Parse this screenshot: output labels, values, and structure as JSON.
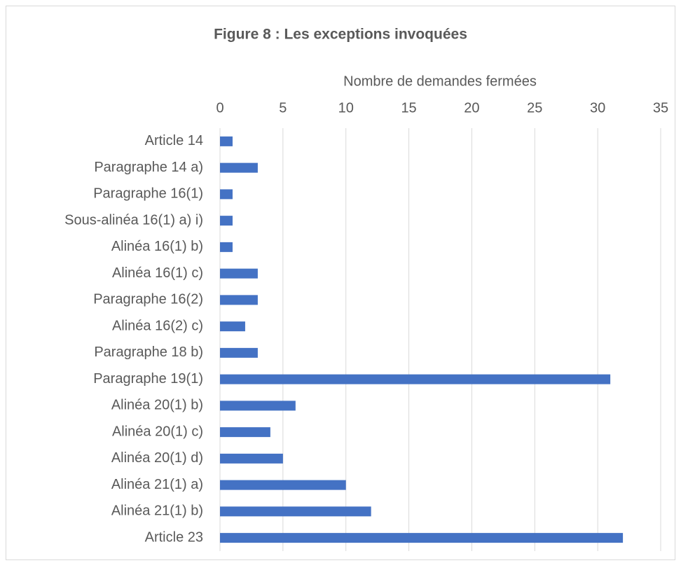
{
  "chart_data": {
    "type": "bar",
    "orientation": "horizontal",
    "title": "Figure 8 : Les exceptions invoquées",
    "xlabel": "Nombre de demandes fermées",
    "categories": [
      "Article 14",
      "Paragraphe 14 a)",
      "Paragraphe 16(1)",
      "Sous-alinéa 16(1) a) i)",
      "Alinéa 16(1) b)",
      "Alinéa 16(1) c)",
      "Paragraphe 16(2)",
      "Alinéa 16(2) c)",
      "Paragraphe 18 b)",
      "Paragraphe 19(1)",
      "Alinéa 20(1) b)",
      "Alinéa 20(1) c)",
      "Alinéa 20(1) d)",
      "Alinéa 21(1) a)",
      "Alinéa 21(1) b)",
      "Article 23"
    ],
    "values": [
      1,
      3,
      1,
      1,
      1,
      3,
      3,
      2,
      3,
      31,
      6,
      4,
      5,
      10,
      12,
      32
    ],
    "color": "#4472c4",
    "xlim": [
      0,
      35
    ],
    "xticks": [
      0,
      5,
      10,
      15,
      20,
      25,
      30,
      35
    ],
    "grid": true
  }
}
